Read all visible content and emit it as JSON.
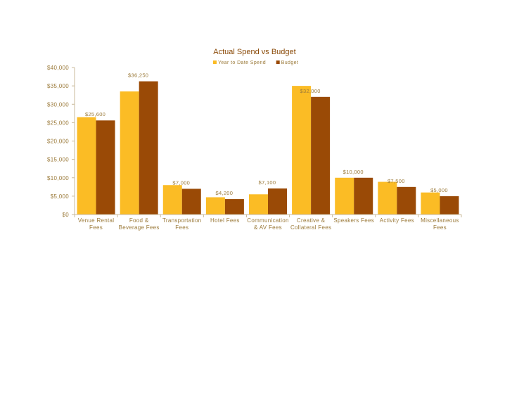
{
  "chart_data": {
    "type": "bar",
    "title": "Actual Spend vs Budget",
    "categories": [
      [
        "Venue Rental",
        "Fees"
      ],
      [
        "Food &",
        "Beverage Fees"
      ],
      [
        "Transportation",
        "Fees"
      ],
      [
        "Hotel Fees"
      ],
      [
        "Communication",
        "& AV Fees"
      ],
      [
        "Creative &",
        "Collateral Fees"
      ],
      [
        "Speakers Fees"
      ],
      [
        "Activity Fees"
      ],
      [
        "Miscellaneous",
        "Fees"
      ]
    ],
    "series": [
      {
        "name": "Year to Date Spend",
        "color": "#fbbc25",
        "values": [
          26500,
          33500,
          8000,
          4700,
          5500,
          35000,
          10000,
          8900,
          6000
        ],
        "labels": [
          "",
          "",
          "",
          "",
          "",
          "",
          "",
          "",
          ""
        ]
      },
      {
        "name": "Budget",
        "color": "#9a4a06",
        "values": [
          25600,
          36250,
          7000,
          4200,
          7100,
          32000,
          10000,
          7500,
          5000
        ],
        "labels": [
          "$25,600",
          "$36,250",
          "$7,000",
          "$4,200",
          "$7,100",
          "$32,000",
          "$10,000",
          "$7,500",
          "$5,000"
        ]
      }
    ],
    "y_ticks": [
      "$0",
      "$5,000",
      "$10,000",
      "$15,000",
      "$20,000",
      "$25,000",
      "$30,000",
      "$35,000",
      "$40,000"
    ],
    "ylim": [
      0,
      40000
    ],
    "grid": false,
    "legend_position": "top-center"
  }
}
